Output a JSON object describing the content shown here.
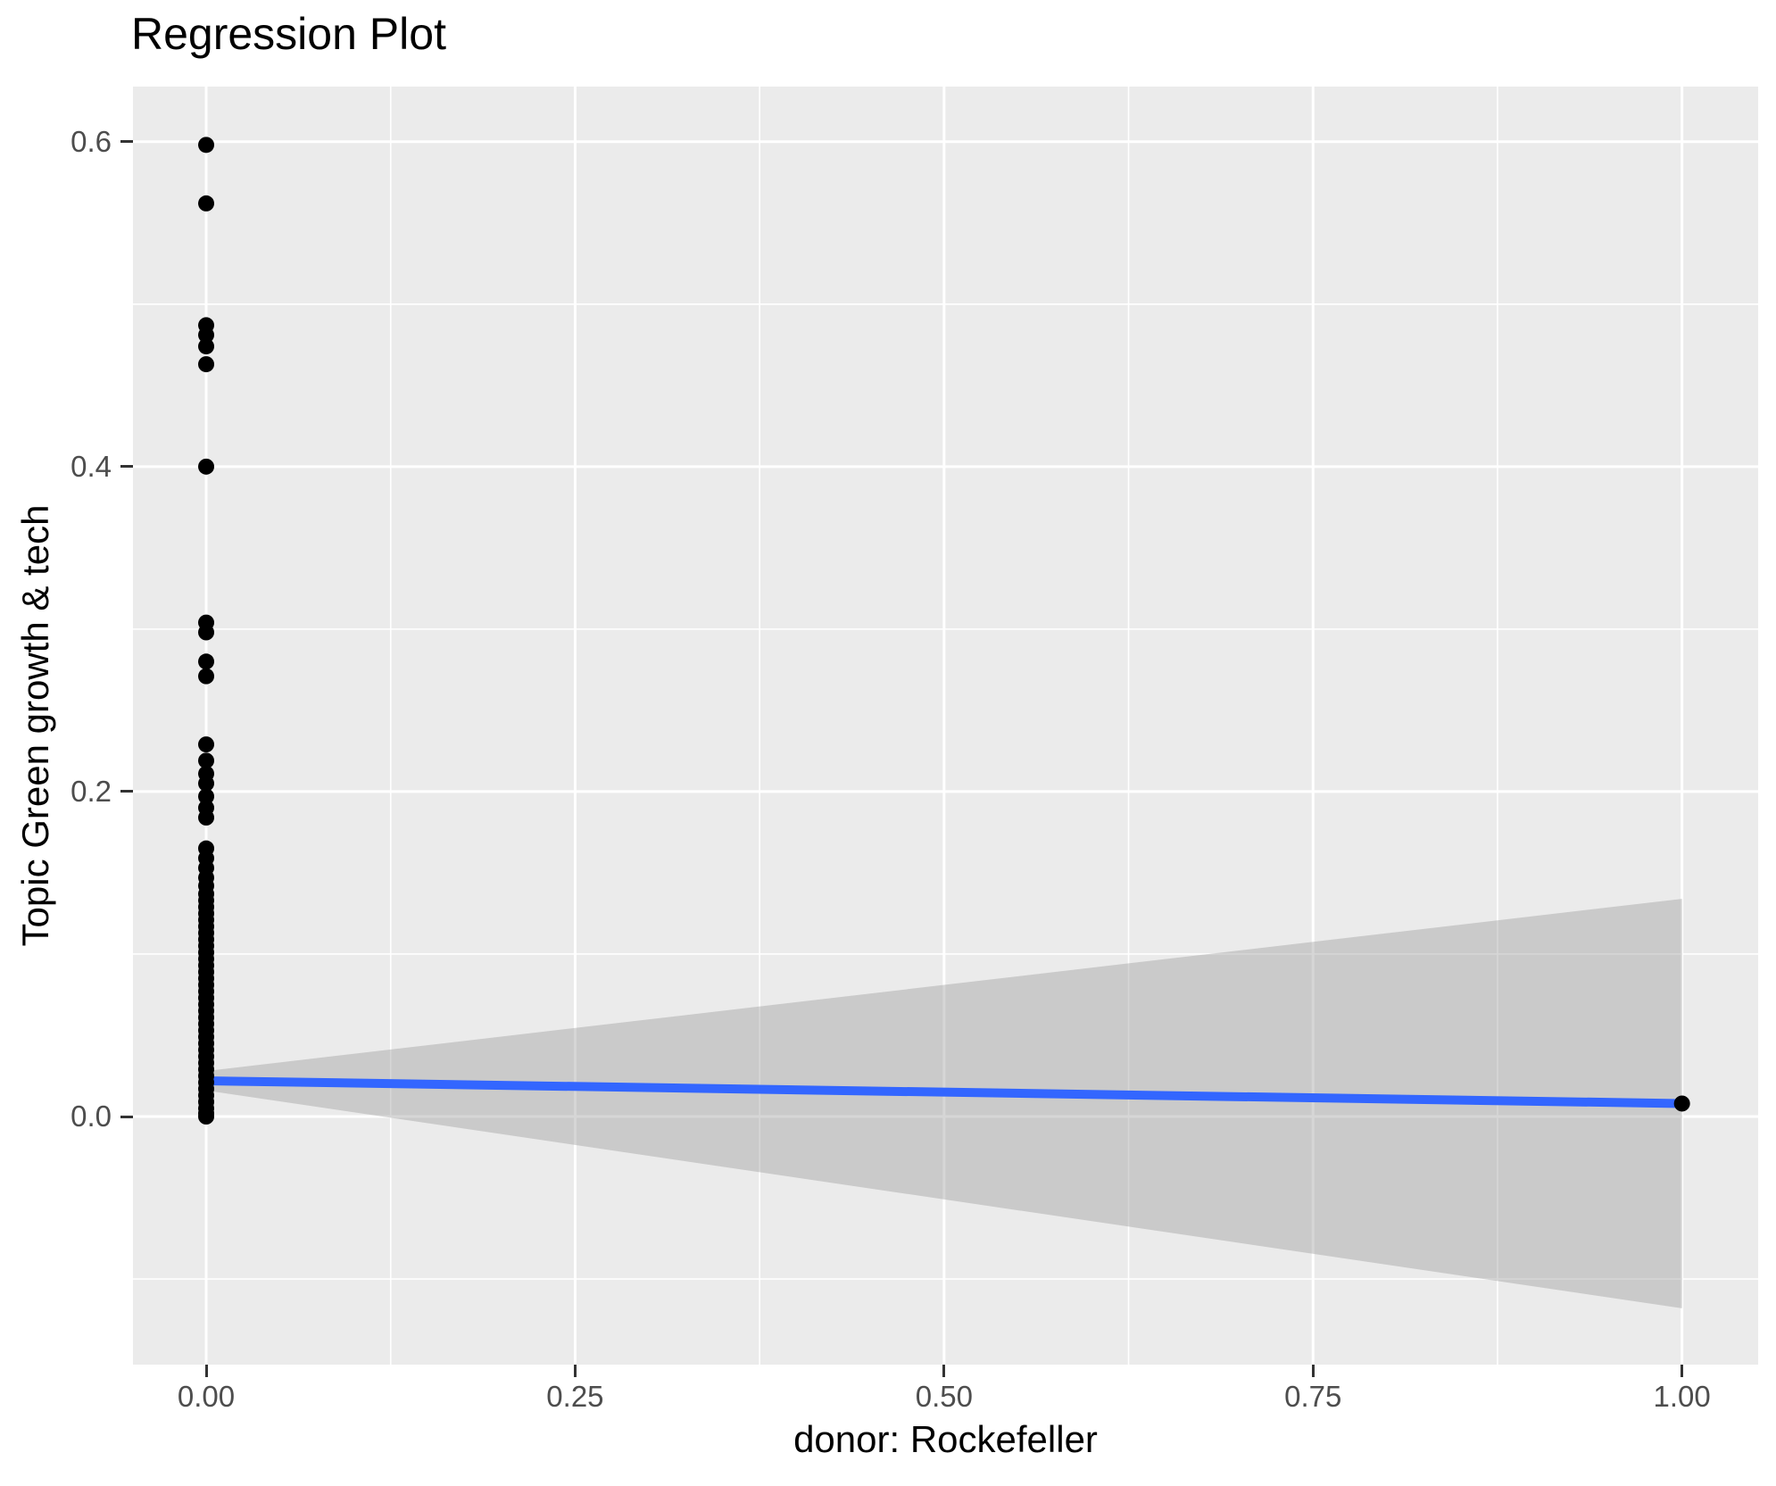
{
  "chart_data": {
    "type": "scatter",
    "title": "Regression Plot",
    "xlabel": "donor: Rockefeller",
    "ylabel": "Topic Green growth & tech",
    "xlim": [
      -0.0496,
      1.0516
    ],
    "ylim": [
      -0.1527,
      0.6339
    ],
    "grid": "on",
    "legend": "none",
    "x_axis": {
      "ticks": [
        {
          "v": 0.0,
          "label": "0.00"
        },
        {
          "v": 0.25,
          "label": "0.25"
        },
        {
          "v": 0.5,
          "label": "0.50"
        },
        {
          "v": 0.75,
          "label": "0.75"
        },
        {
          "v": 1.0,
          "label": "1.00"
        }
      ],
      "minor": [
        0.125,
        0.375,
        0.625,
        0.875
      ]
    },
    "y_axis": {
      "ticks": [
        {
          "v": 0.0,
          "label": "0.0"
        },
        {
          "v": 0.2,
          "label": "0.2"
        },
        {
          "v": 0.4,
          "label": "0.4"
        },
        {
          "v": 0.6,
          "label": "0.6"
        }
      ],
      "minor": [
        -0.1,
        0.1,
        0.3,
        0.5
      ]
    },
    "points": [
      [
        0,
        0.598
      ],
      [
        0,
        0.562
      ],
      [
        0,
        0.487
      ],
      [
        0,
        0.481
      ],
      [
        0,
        0.474
      ],
      [
        0,
        0.463
      ],
      [
        0,
        0.4
      ],
      [
        0,
        0.304
      ],
      [
        0,
        0.298
      ],
      [
        0,
        0.28
      ],
      [
        0,
        0.271
      ],
      [
        0,
        0.229
      ],
      [
        0,
        0.219
      ],
      [
        0,
        0.211
      ],
      [
        0,
        0.205
      ],
      [
        0,
        0.197
      ],
      [
        0,
        0.19
      ],
      [
        0,
        0.184
      ],
      [
        0,
        0.165
      ],
      [
        0,
        0.159
      ],
      [
        0,
        0.153
      ],
      [
        0,
        0.147
      ],
      [
        0,
        0.142
      ],
      [
        0,
        0.137
      ],
      [
        0,
        0.133
      ],
      [
        0,
        0.129
      ],
      [
        0,
        0.125
      ],
      [
        0,
        0.121
      ],
      [
        0,
        0.117
      ],
      [
        0,
        0.113
      ],
      [
        0,
        0.109
      ],
      [
        0,
        0.105
      ],
      [
        0,
        0.101
      ],
      [
        0,
        0.097
      ],
      [
        0,
        0.093
      ],
      [
        0,
        0.089
      ],
      [
        0,
        0.085
      ],
      [
        0,
        0.081
      ],
      [
        0,
        0.077
      ],
      [
        0,
        0.073
      ],
      [
        0,
        0.069
      ],
      [
        0,
        0.065
      ],
      [
        0,
        0.061
      ],
      [
        0,
        0.057
      ],
      [
        0,
        0.053
      ],
      [
        0,
        0.049
      ],
      [
        0,
        0.045
      ],
      [
        0,
        0.041
      ],
      [
        0,
        0.037
      ],
      [
        0,
        0.033
      ],
      [
        0,
        0.029
      ],
      [
        0,
        0.025
      ],
      [
        0,
        0.021
      ],
      [
        0,
        0.017
      ],
      [
        0,
        0.013
      ],
      [
        0,
        0.009
      ],
      [
        0,
        0.005
      ],
      [
        0,
        0.002
      ],
      [
        0,
        0.0
      ],
      [
        1,
        0.008
      ]
    ],
    "regression_line": {
      "x1": 0,
      "y1": 0.022,
      "x2": 1,
      "y2": 0.008
    },
    "confidence_band": [
      [
        0,
        0.028
      ],
      [
        1,
        0.134
      ],
      [
        1,
        -0.118
      ],
      [
        0,
        0.016
      ]
    ],
    "style": {
      "panel_color": "#EBEBEB",
      "grid_color": "#FFFFFF",
      "point_color": "#000000",
      "point_radius": 9,
      "line_color": "#3366FF",
      "line_width": 10,
      "band_color": "#999999",
      "band_opacity": 0.4,
      "tick_label_color": "#4D4D4D",
      "tick_mark_color": "#333333",
      "title_color": "#000000"
    }
  }
}
